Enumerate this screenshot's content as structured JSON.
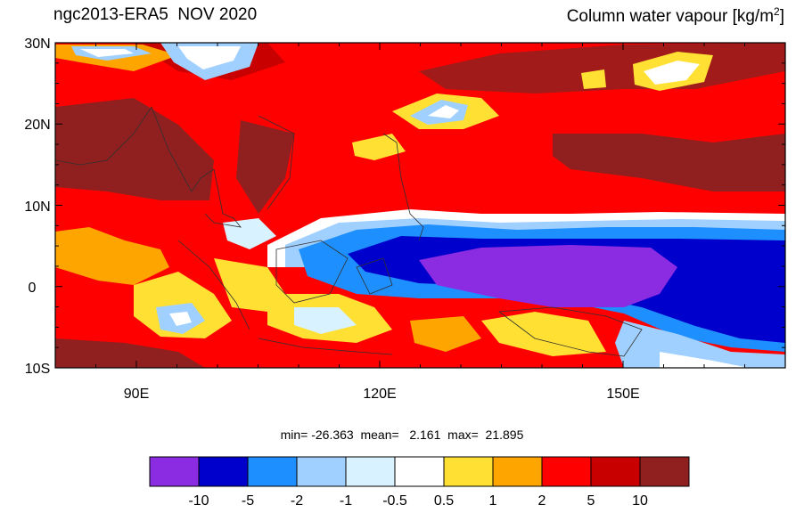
{
  "header": {
    "left_title": "ngc2013-ERA5  NOV 2020",
    "right_title_main": "Column water vapour [kg/m",
    "right_title_sup": "2",
    "right_title_end": "]"
  },
  "map": {
    "lon_range": [
      80,
      170
    ],
    "lat_range": [
      -10,
      30
    ],
    "lat_ticks": [
      "30N",
      "20N",
      "10N",
      "0",
      "10S"
    ],
    "lon_ticks": [
      "90E",
      "120E",
      "150E"
    ]
  },
  "stats": {
    "text": "min= -26.363  mean=   2.161  max=  21.895"
  },
  "colorbar": {
    "colors": [
      "#8b2be2",
      "#0000cd",
      "#1e8fff",
      "#a0d0ff",
      "#d8f2ff",
      "#ffffff",
      "#ffe033",
      "#ffa500",
      "#ff0000",
      "#c80000",
      "#902020"
    ],
    "labels": [
      "-10",
      "-5",
      "-2",
      "-1",
      "-0.5",
      "0.5",
      "1",
      "2",
      "5",
      "10"
    ]
  }
}
